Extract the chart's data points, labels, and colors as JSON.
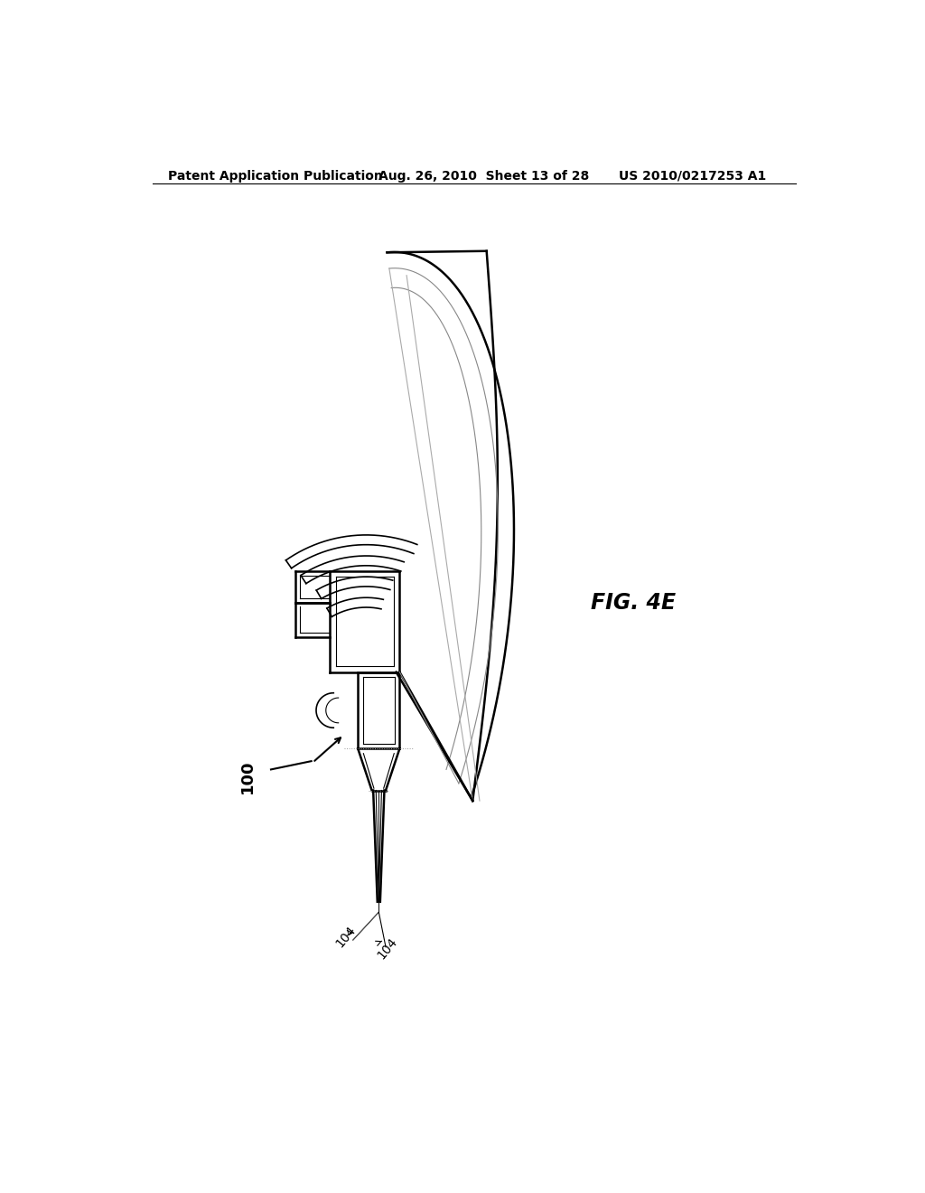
{
  "title_left": "Patent Application Publication",
  "title_mid": "Aug. 26, 2010  Sheet 13 of 28",
  "title_right": "US 2010/0217253 A1",
  "fig_label": "FIG. 4E",
  "label_100": "100",
  "label_104_left": "104",
  "label_104_right": "104",
  "bg_color": "#ffffff",
  "line_color": "#000000",
  "title_fontsize": 10,
  "label_fontsize": 11
}
